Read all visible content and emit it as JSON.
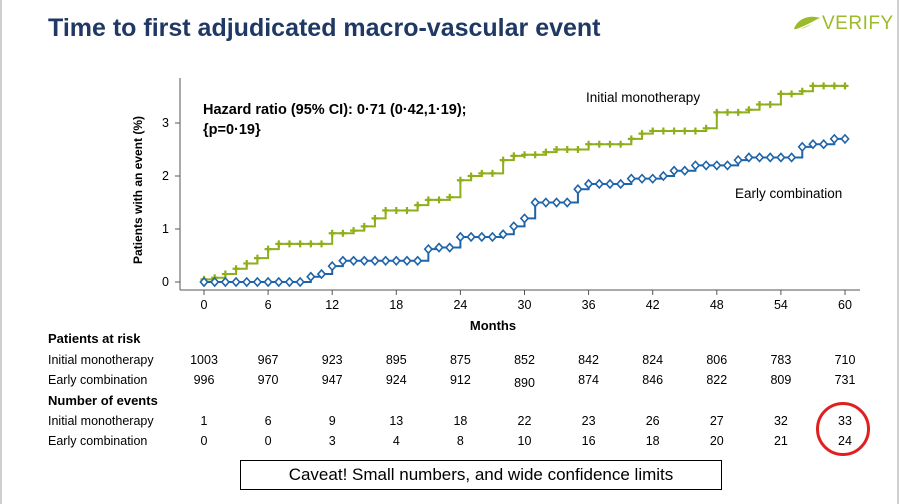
{
  "title": "Time to first adjudicated macro-vascular event",
  "logo": {
    "text": "VERIFY",
    "color": "#9bbb2a"
  },
  "annotation": {
    "line1": "Hazard ratio (95% CI): 0·71 (0·42,1·19);",
    "line2": "{p=0·19}"
  },
  "chart_data": {
    "type": "line",
    "step": true,
    "xlabel": "Months",
    "ylabel": "Patients with an event (%)",
    "xlim": [
      0,
      60
    ],
    "ylim": [
      0,
      3.7
    ],
    "xticks": [
      0,
      6,
      12,
      18,
      24,
      30,
      36,
      42,
      48,
      54,
      60
    ],
    "yticks": [
      0,
      1,
      2,
      3
    ],
    "grid": false,
    "series": [
      {
        "name": "Initial monotherapy",
        "color": "#8fae1b",
        "marker": "plus",
        "points": [
          [
            0,
            0.05
          ],
          [
            1,
            0.08
          ],
          [
            2,
            0.15
          ],
          [
            3,
            0.25
          ],
          [
            4,
            0.35
          ],
          [
            5,
            0.45
          ],
          [
            6,
            0.62
          ],
          [
            7,
            0.72
          ],
          [
            8,
            0.72
          ],
          [
            9,
            0.72
          ],
          [
            10,
            0.72
          ],
          [
            11,
            0.72
          ],
          [
            12,
            0.92
          ],
          [
            13,
            0.92
          ],
          [
            14,
            0.97
          ],
          [
            15,
            1.05
          ],
          [
            16,
            1.2
          ],
          [
            17,
            1.35
          ],
          [
            18,
            1.35
          ],
          [
            19,
            1.35
          ],
          [
            20,
            1.45
          ],
          [
            21,
            1.55
          ],
          [
            22,
            1.55
          ],
          [
            23,
            1.6
          ],
          [
            24,
            1.92
          ],
          [
            25,
            2.0
          ],
          [
            26,
            2.05
          ],
          [
            27,
            2.05
          ],
          [
            28,
            2.3
          ],
          [
            29,
            2.38
          ],
          [
            30,
            2.4
          ],
          [
            31,
            2.4
          ],
          [
            32,
            2.45
          ],
          [
            33,
            2.5
          ],
          [
            34,
            2.5
          ],
          [
            35,
            2.5
          ],
          [
            36,
            2.6
          ],
          [
            37,
            2.6
          ],
          [
            38,
            2.6
          ],
          [
            39,
            2.6
          ],
          [
            40,
            2.7
          ],
          [
            41,
            2.8
          ],
          [
            42,
            2.85
          ],
          [
            43,
            2.85
          ],
          [
            44,
            2.85
          ],
          [
            45,
            2.85
          ],
          [
            46,
            2.85
          ],
          [
            47,
            2.9
          ],
          [
            48,
            3.2
          ],
          [
            49,
            3.2
          ],
          [
            50,
            3.2
          ],
          [
            51,
            3.25
          ],
          [
            52,
            3.35
          ],
          [
            53,
            3.35
          ],
          [
            54,
            3.55
          ],
          [
            55,
            3.55
          ],
          [
            56,
            3.6
          ],
          [
            57,
            3.7
          ],
          [
            58,
            3.7
          ],
          [
            59,
            3.7
          ],
          [
            60,
            3.7
          ]
        ]
      },
      {
        "name": "Early combination",
        "color": "#1e64a8",
        "marker": "diamond",
        "points": [
          [
            0,
            0
          ],
          [
            1,
            0
          ],
          [
            2,
            0
          ],
          [
            3,
            0
          ],
          [
            4,
            0
          ],
          [
            5,
            0
          ],
          [
            6,
            0
          ],
          [
            7,
            0
          ],
          [
            8,
            0
          ],
          [
            9,
            0
          ],
          [
            10,
            0.1
          ],
          [
            11,
            0.15
          ],
          [
            12,
            0.3
          ],
          [
            13,
            0.4
          ],
          [
            14,
            0.4
          ],
          [
            15,
            0.4
          ],
          [
            16,
            0.4
          ],
          [
            17,
            0.4
          ],
          [
            18,
            0.4
          ],
          [
            19,
            0.4
          ],
          [
            20,
            0.4
          ],
          [
            21,
            0.62
          ],
          [
            22,
            0.65
          ],
          [
            23,
            0.65
          ],
          [
            24,
            0.85
          ],
          [
            25,
            0.85
          ],
          [
            26,
            0.85
          ],
          [
            27,
            0.85
          ],
          [
            28,
            0.9
          ],
          [
            29,
            1.05
          ],
          [
            30,
            1.2
          ],
          [
            31,
            1.5
          ],
          [
            32,
            1.5
          ],
          [
            33,
            1.5
          ],
          [
            34,
            1.5
          ],
          [
            35,
            1.75
          ],
          [
            36,
            1.85
          ],
          [
            37,
            1.85
          ],
          [
            38,
            1.85
          ],
          [
            39,
            1.85
          ],
          [
            40,
            1.95
          ],
          [
            41,
            1.95
          ],
          [
            42,
            1.95
          ],
          [
            43,
            2.0
          ],
          [
            44,
            2.1
          ],
          [
            45,
            2.1
          ],
          [
            46,
            2.2
          ],
          [
            47,
            2.2
          ],
          [
            48,
            2.2
          ],
          [
            49,
            2.2
          ],
          [
            50,
            2.3
          ],
          [
            51,
            2.35
          ],
          [
            52,
            2.35
          ],
          [
            53,
            2.35
          ],
          [
            54,
            2.35
          ],
          [
            55,
            2.35
          ],
          [
            56,
            2.55
          ],
          [
            57,
            2.6
          ],
          [
            58,
            2.6
          ],
          [
            59,
            2.7
          ],
          [
            60,
            2.7
          ]
        ]
      }
    ]
  },
  "table": {
    "at_risk_header": "Patients at risk",
    "events_header": "Number of events",
    "row_labels": [
      "Initial monotherapy",
      "Early combination"
    ],
    "at_risk": {
      "initial": [
        "1003",
        "967",
        "923",
        "895",
        "875",
        "852",
        "842",
        "824",
        "806",
        "783",
        "710"
      ],
      "early": [
        "996",
        "970",
        "947",
        "924",
        "912",
        "890",
        "874",
        "846",
        "822",
        "809",
        "731"
      ]
    },
    "events": {
      "initial": [
        "1",
        "6",
        "9",
        "13",
        "18",
        "22",
        "23",
        "26",
        "27",
        "32",
        "33"
      ],
      "early": [
        "0",
        "0",
        "3",
        "4",
        "8",
        "10",
        "16",
        "18",
        "20",
        "21",
        "24"
      ]
    }
  },
  "caveat": "Caveat! Small numbers, and wide confidence limits",
  "highlight_color": "#e02020"
}
